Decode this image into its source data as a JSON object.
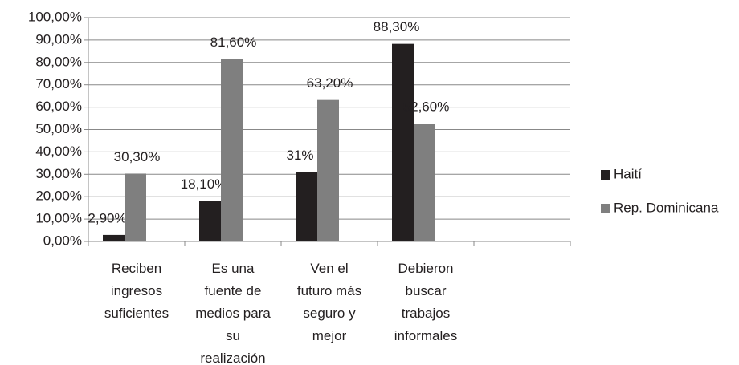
{
  "chart_data": {
    "type": "bar",
    "categories": [
      "Reciben\ningresos\nsuficientes",
      "Es una\nfuente de\nmedios para\nsu\nrealización",
      "Ven el\nfuturo más\nseguro y\nmejor",
      "Debieron\nbuscar\ntrabajos\ninformales",
      null
    ],
    "series": [
      {
        "name": "Haití",
        "color": "#231f20",
        "values": [
          2.9,
          18.1,
          31,
          88.3,
          null
        ],
        "value_labels": [
          "2,90%",
          "18,10%",
          "31%",
          "88,30%",
          null
        ]
      },
      {
        "name": "Rep. Dominicana",
        "color": "#7f7f7f",
        "values": [
          30.3,
          81.6,
          63.2,
          52.6,
          null
        ],
        "value_labels": [
          "30,30%",
          "81,60%",
          "63,20%",
          "52,60%",
          null
        ]
      }
    ],
    "ylim": [
      0,
      100
    ],
    "yticks": [
      {
        "value": 0,
        "label": "0,00%"
      },
      {
        "value": 10,
        "label": "10,00%"
      },
      {
        "value": 20,
        "label": "20,00%"
      },
      {
        "value": 30,
        "label": "30,00%"
      },
      {
        "value": 40,
        "label": "40,00%"
      },
      {
        "value": 50,
        "label": "50,00%"
      },
      {
        "value": 60,
        "label": "60,00%"
      },
      {
        "value": 70,
        "label": "70,00%"
      },
      {
        "value": 80,
        "label": "80,00%"
      },
      {
        "value": 90,
        "label": "90,00%"
      },
      {
        "value": 100,
        "label": "100,00%"
      }
    ],
    "grid": true,
    "legend": "right"
  }
}
